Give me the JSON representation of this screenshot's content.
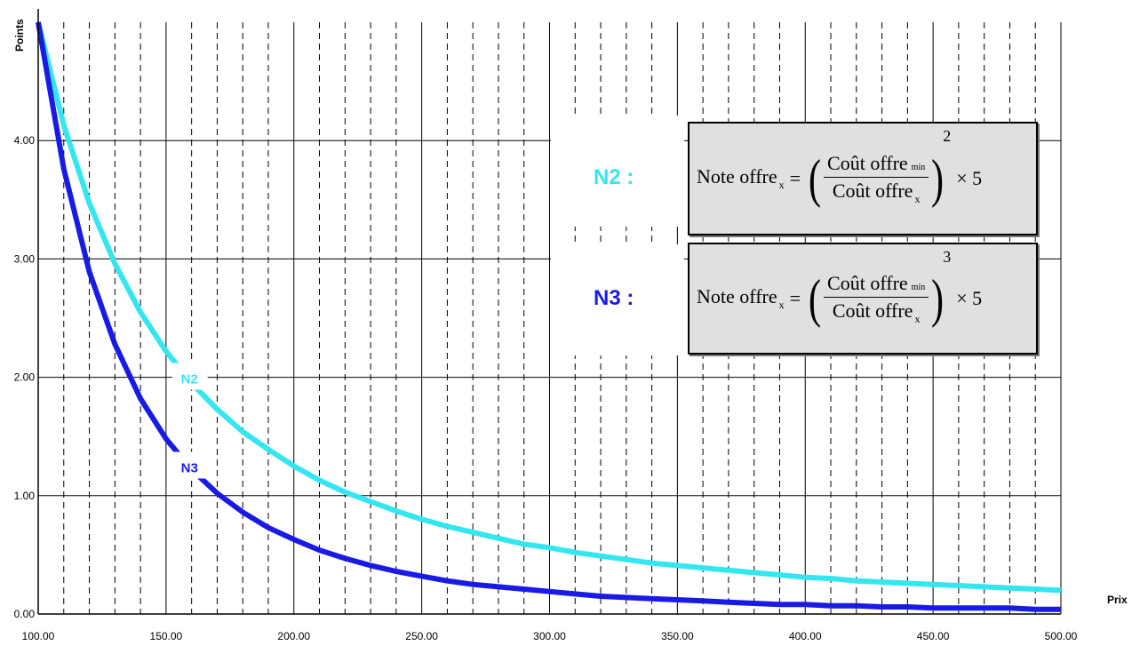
{
  "chart_data": {
    "type": "line",
    "xlabel": "Prix",
    "ylabel": "Points",
    "xlim": [
      100,
      500
    ],
    "ylim": [
      0,
      5
    ],
    "x_ticks": [
      "100.00",
      "150.00",
      "200.00",
      "250.00",
      "300.00",
      "350.00",
      "400.00",
      "450.00",
      "500.00"
    ],
    "y_ticks": [
      "0.00",
      "1.00",
      "2.00",
      "3.00",
      "4.00"
    ],
    "x_minor_step": 10,
    "grid": true,
    "x": [
      100,
      110,
      120,
      130,
      140,
      150,
      160,
      170,
      180,
      190,
      200,
      210,
      220,
      230,
      240,
      250,
      260,
      270,
      280,
      290,
      300,
      310,
      320,
      330,
      340,
      350,
      360,
      370,
      380,
      390,
      400,
      410,
      420,
      430,
      440,
      450,
      460,
      470,
      480,
      490,
      500
    ],
    "series": [
      {
        "name": "N2",
        "color": "#33e6f0",
        "values": [
          5.0,
          4.13,
          3.47,
          2.96,
          2.55,
          2.22,
          1.95,
          1.73,
          1.54,
          1.39,
          1.25,
          1.13,
          1.03,
          0.95,
          0.87,
          0.8,
          0.74,
          0.69,
          0.64,
          0.59,
          0.56,
          0.52,
          0.49,
          0.46,
          0.43,
          0.41,
          0.39,
          0.37,
          0.35,
          0.33,
          0.31,
          0.3,
          0.28,
          0.27,
          0.26,
          0.25,
          0.24,
          0.23,
          0.22,
          0.21,
          0.2
        ]
      },
      {
        "name": "N3",
        "color": "#1a1ae6",
        "values": [
          5.0,
          3.76,
          2.89,
          2.28,
          1.82,
          1.48,
          1.22,
          1.02,
          0.86,
          0.73,
          0.63,
          0.54,
          0.47,
          0.41,
          0.36,
          0.32,
          0.28,
          0.25,
          0.23,
          0.21,
          0.19,
          0.17,
          0.15,
          0.14,
          0.13,
          0.12,
          0.11,
          0.1,
          0.09,
          0.08,
          0.08,
          0.07,
          0.07,
          0.06,
          0.06,
          0.05,
          0.05,
          0.05,
          0.05,
          0.04,
          0.04
        ]
      }
    ],
    "curve_labels": [
      {
        "text": "N2",
        "series": "N2"
      },
      {
        "text": "N3",
        "series": "N3"
      }
    ]
  },
  "formulas": [
    {
      "label": "N2 :",
      "color": "#33e6f0",
      "lhs": "Note  offre",
      "lhs_sub": "x",
      "eq": "=",
      "numerator": "Coût  offre",
      "numerator_sub": "min",
      "denominator": "Coût  offre",
      "denominator_sub": "x",
      "exponent": "2",
      "times": "× 5"
    },
    {
      "label": "N3 :",
      "color": "#1a1ae6",
      "lhs": "Note  offre",
      "lhs_sub": "x",
      "eq": "=",
      "numerator": "Coût  offre",
      "numerator_sub": "min",
      "denominator": "Coût  offre",
      "denominator_sub": "x",
      "exponent": "3",
      "times": "× 5"
    }
  ]
}
